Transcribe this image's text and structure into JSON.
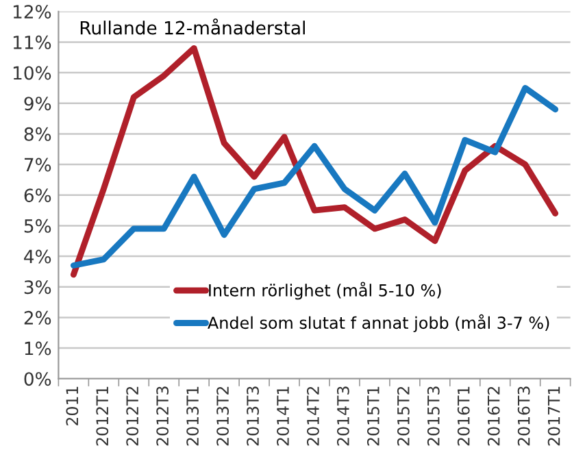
{
  "chart_data": {
    "type": "line",
    "title": "Rullande 12-månaderstal",
    "categories": [
      "2011",
      "2012T1",
      "2012T2",
      "2012T3",
      "2013T1",
      "2013T2",
      "2013T3",
      "2014T1",
      "2014T2",
      "2014T3",
      "2015T1",
      "2015T2",
      "2015T3",
      "2016T1",
      "2016T2",
      "2016T3",
      "2017T1"
    ],
    "series": [
      {
        "name": "Intern rörlighet (mål 5-10 %)",
        "color": "#b0202a",
        "values": [
          3.4,
          6.2,
          9.2,
          9.9,
          10.8,
          7.7,
          6.6,
          7.9,
          5.5,
          5.6,
          4.9,
          5.2,
          4.5,
          6.8,
          7.6,
          7.0,
          5.4
        ]
      },
      {
        "name": "Andel som slutat f annat jobb (mål 3-7 %)",
        "color": "#1878c0",
        "values": [
          3.7,
          3.9,
          4.9,
          4.9,
          6.6,
          4.7,
          6.2,
          6.4,
          7.6,
          6.2,
          5.5,
          6.7,
          5.1,
          7.8,
          7.4,
          9.5,
          8.8
        ]
      }
    ],
    "ylim": [
      0,
      12
    ],
    "yticks": [
      {
        "value": 0,
        "label": "0%"
      },
      {
        "value": 1,
        "label": "1%"
      },
      {
        "value": 2,
        "label": "2%"
      },
      {
        "value": 3,
        "label": "3%"
      },
      {
        "value": 4,
        "label": "4%"
      },
      {
        "value": 5,
        "label": "5%"
      },
      {
        "value": 6,
        "label": "6%"
      },
      {
        "value": 7,
        "label": "7%"
      },
      {
        "value": 8,
        "label": "8%"
      },
      {
        "value": 9,
        "label": "9%"
      },
      {
        "value": 10,
        "label": "10%"
      },
      {
        "value": 11,
        "label": "11%"
      },
      {
        "value": 12,
        "label": "12%"
      }
    ],
    "grid": "y",
    "legend": "bottom right",
    "marker": "none",
    "line_style": "solid"
  }
}
